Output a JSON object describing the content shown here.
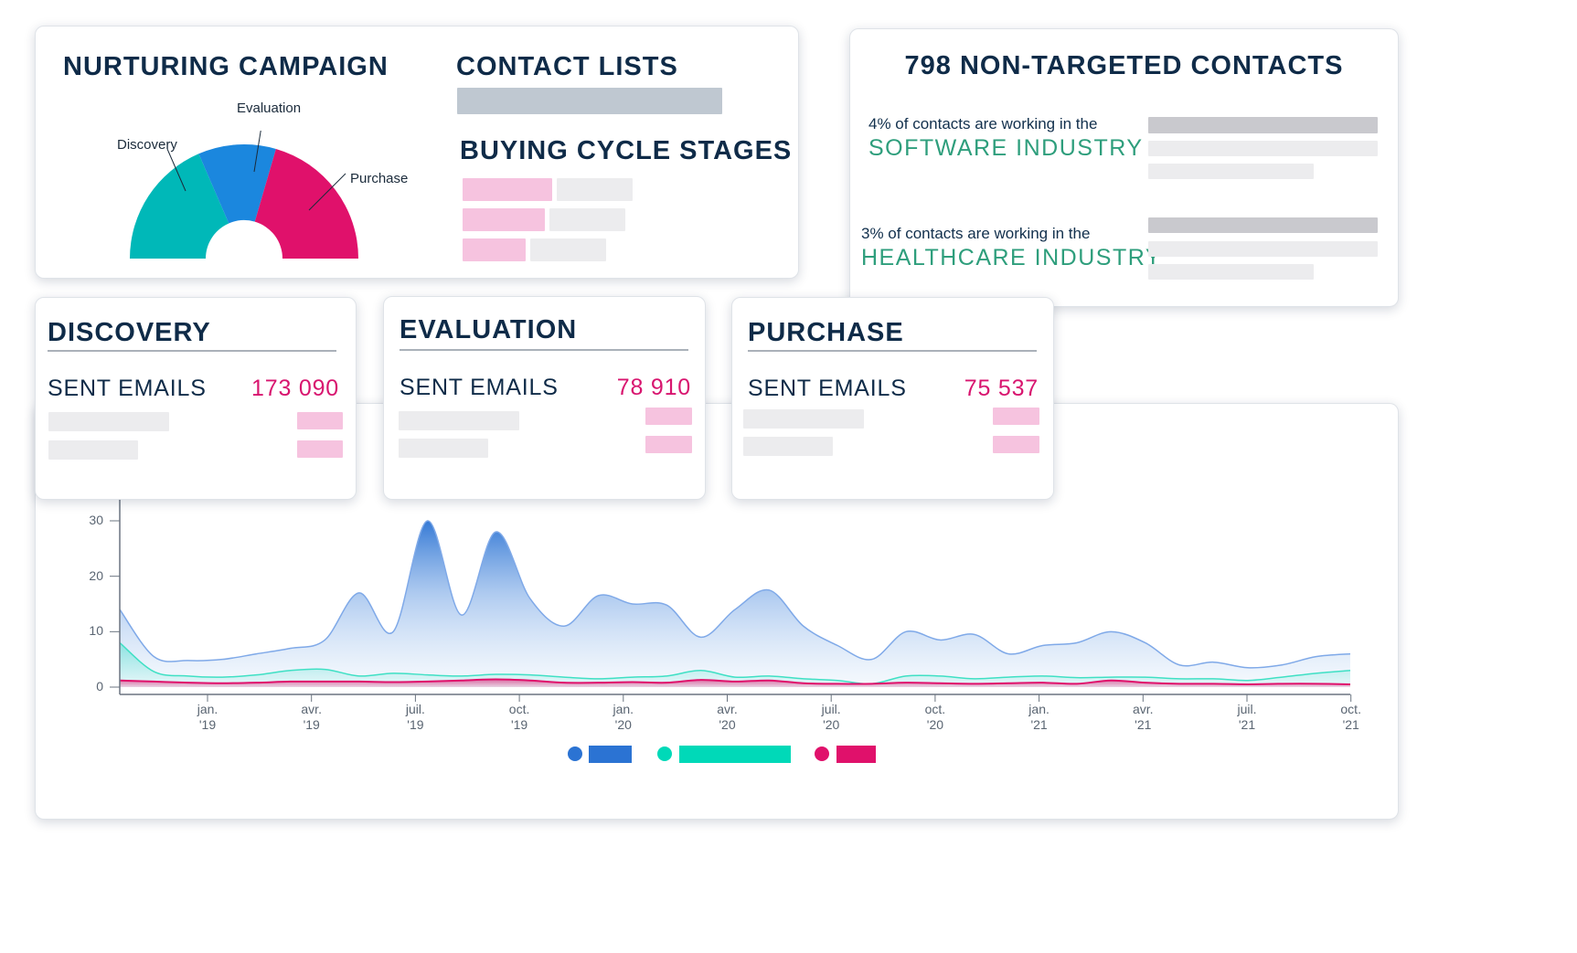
{
  "colors": {
    "discovery": "#00b8b8",
    "evaluation": "#1b87de",
    "purchase": "#e0116b",
    "series_blue": "#2b73d3",
    "series_teal": "#00d9b8",
    "series_pink": "#e0116b",
    "accent_value": "#d8156f",
    "industry_green": "#2e9e7c"
  },
  "nurturing": {
    "title": "NURTURING CAMPAIGN",
    "gauge": {
      "labels": [
        "Discovery",
        "Evaluation",
        "Purchase"
      ],
      "shares": [
        0.37,
        0.22,
        0.41
      ]
    }
  },
  "contact_lists": {
    "title": "CONTACT LISTS"
  },
  "buying_cycle": {
    "title": "BUYING CYCLE STAGES"
  },
  "non_targeted": {
    "title": "798 NON-TARGETED CONTACTS",
    "items": [
      {
        "text": "4% of contacts are working in the",
        "industry": "SOFTWARE INDUSTRY"
      },
      {
        "text": "3% of contacts are working in the",
        "industry": "HEALTHCARE INDUSTRY"
      }
    ]
  },
  "stages": [
    {
      "title": "DISCOVERY",
      "label": "SENT EMAILS",
      "value": "173 090"
    },
    {
      "title": "EVALUATION",
      "label": "SENT EMAILS",
      "value": "78 910"
    },
    {
      "title": "PURCHASE",
      "label": "SENT EMAILS",
      "value": "75 537"
    }
  ],
  "chart_data": {
    "type": "area",
    "y_ticks": [
      "30",
      "20",
      "10",
      "0"
    ],
    "ylim": [
      0,
      30
    ],
    "x_ticks": [
      {
        "month": "jan.",
        "year": "'19"
      },
      {
        "month": "avr.",
        "year": "'19"
      },
      {
        "month": "juil.",
        "year": "'19"
      },
      {
        "month": "oct.",
        "year": "'19"
      },
      {
        "month": "jan.",
        "year": "'20"
      },
      {
        "month": "avr.",
        "year": "'20"
      },
      {
        "month": "juil.",
        "year": "'20"
      },
      {
        "month": "oct.",
        "year": "'20"
      },
      {
        "month": "jan.",
        "year": "'21"
      },
      {
        "month": "avr.",
        "year": "'21"
      },
      {
        "month": "juil.",
        "year": "'21"
      },
      {
        "month": "oct.",
        "year": "'21"
      }
    ],
    "series": [
      {
        "color": "#2b73d3",
        "values": [
          14,
          5.5,
          4.8,
          5,
          6,
          7,
          8.5,
          17,
          10,
          30,
          13,
          28,
          16,
          11,
          16.5,
          15,
          14.8,
          9,
          14,
          17.5,
          11,
          7.5,
          5,
          10,
          8.5,
          9.5,
          6,
          7.5,
          8,
          10,
          8,
          4,
          4.5,
          3.5,
          4,
          5.5,
          6
        ]
      },
      {
        "color": "#00d9b8",
        "values": [
          8,
          2.8,
          2,
          1.8,
          2.2,
          3,
          3.2,
          2,
          2.5,
          2.2,
          2,
          2.3,
          2.2,
          1.8,
          1.5,
          1.8,
          2,
          3,
          1.8,
          2,
          1.5,
          1.2,
          0.6,
          2,
          2,
          1.5,
          1.8,
          2,
          1.7,
          1.8,
          1.8,
          1.5,
          1.5,
          1.2,
          1.8,
          2.5,
          3
        ]
      },
      {
        "color": "#e0116b",
        "values": [
          1.2,
          1,
          0.8,
          0.7,
          0.8,
          1,
          1,
          1,
          0.9,
          1,
          1.2,
          1.4,
          1.2,
          0.8,
          0.8,
          0.9,
          0.8,
          1.3,
          1,
          1.2,
          0.7,
          0.6,
          0.6,
          0.8,
          0.7,
          0.6,
          0.7,
          0.8,
          0.6,
          1.2,
          0.8,
          0.6,
          0.6,
          0.5,
          0.6,
          0.6,
          0.5
        ]
      }
    ]
  }
}
